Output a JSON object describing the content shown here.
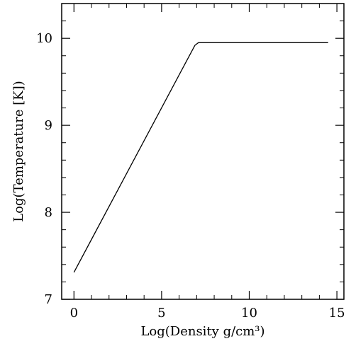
{
  "chart_data": {
    "type": "line",
    "title": "",
    "xlabel": "Log(Density g/cm³)",
    "ylabel": "Log(Temperature [K])",
    "xlim": [
      -0.7,
      15.4
    ],
    "ylim": [
      7.0,
      10.4
    ],
    "xticks": [
      0,
      5,
      10,
      15
    ],
    "yticks": [
      7,
      8,
      9,
      10
    ],
    "xtick_labels": [
      "0",
      "5",
      "10",
      "15"
    ],
    "ytick_labels": [
      "7",
      "8",
      "9",
      "10"
    ],
    "grid": false,
    "series": [
      {
        "color": "#000000",
        "x": [
          0.0,
          6.9,
          7.1,
          14.5
        ],
        "y": [
          7.31,
          9.92,
          9.95,
          9.95
        ]
      }
    ]
  }
}
